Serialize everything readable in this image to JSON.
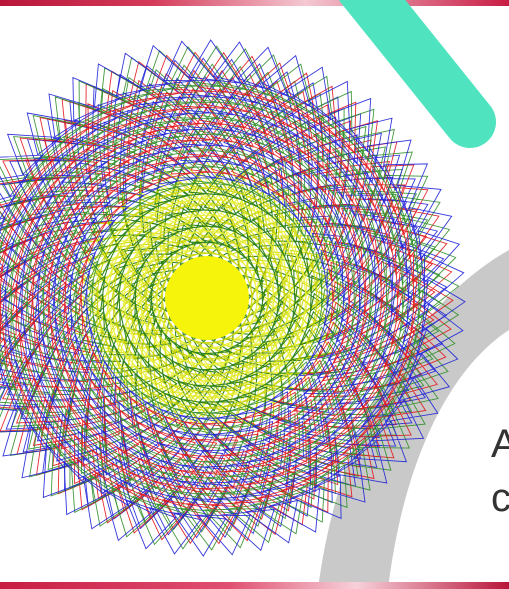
{
  "side_text": {
    "line_1": "A",
    "line_2": "c"
  },
  "spiral": {
    "outer_colors": [
      "#1f22d8",
      "#e3141b",
      "#2f8f28"
    ],
    "inner_colors": [
      "#1f7a10",
      "#c8d400",
      "#e8ef30"
    ],
    "core_color": "#f6f40a"
  },
  "decor": {
    "teal_stroke_color": "#4fe3bf",
    "gray_arc_color": "#c9c9c9"
  }
}
